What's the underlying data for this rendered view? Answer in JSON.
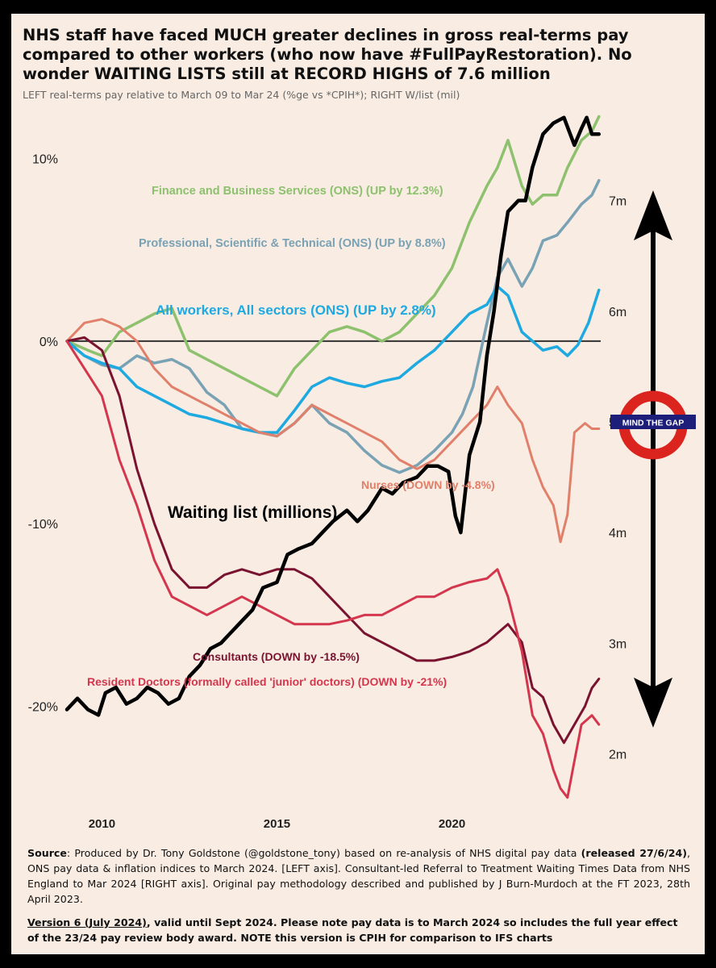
{
  "title": "NHS staff have faced MUCH greater declines in gross real-terms pay compared to other workers (who now have #FullPayRestoration). No wonder WAITING LISTS still at RECORD HIGHS of 7.6 million",
  "subtitle": "LEFT real-terms pay relative to March 09 to Mar 24 (%ge vs *CPIH*); RIGHT W/list (mil)",
  "chart_data": {
    "type": "line",
    "title": "NHS staff have faced MUCH greater declines in gross real-terms pay compared to other workers (who now have #FullPayRestoration). No wonder WAITING LISTS still at RECORD HIGHS of 7.6 million",
    "xlabel": "",
    "ylabel": "",
    "xlim": [
      2009.0,
      2024.25
    ],
    "ylim": [
      -25.5,
      12.5
    ],
    "y2lim": [
      1.85,
      7.5
    ],
    "x_ticks": [
      2010,
      2015,
      2020
    ],
    "x_tick_labels": [
      "2010",
      "2015",
      "2020"
    ],
    "y_ticks": [
      10,
      0,
      -10,
      -20
    ],
    "y_tick_labels": [
      "10%",
      "0%",
      "-10%",
      "-20%"
    ],
    "y2_ticks": [
      7,
      6,
      5,
      4,
      3,
      2
    ],
    "y2_tick_labels": [
      "7m",
      "6m",
      "5m",
      "4m",
      "3m",
      "2m"
    ],
    "colors": {
      "finance": "#8ec16e",
      "professional": "#7aa2b5",
      "all_workers": "#1fa9e1",
      "nurses": "#e1806a",
      "consultants": "#7a1330",
      "resident_doctors": "#d4374d",
      "waiting_list": "#000000",
      "zero_line": "#333333"
    },
    "series": [
      {
        "key": "finance",
        "name": "Finance and Business Services (ONS)",
        "axis": "left",
        "label": "Finance and Business Services (ONS) (UP by 12.3%)",
        "x": [
          2009.0,
          2009.6,
          2010.0,
          2010.5,
          2011.0,
          2011.5,
          2012.0,
          2012.5,
          2013.0,
          2013.5,
          2014.0,
          2014.5,
          2015.0,
          2015.5,
          2016.0,
          2016.5,
          2017.0,
          2017.5,
          2018.0,
          2018.5,
          2019.0,
          2019.5,
          2020.0,
          2020.5,
          2021.0,
          2021.3,
          2021.6,
          2022.0,
          2022.3,
          2022.6,
          2023.0,
          2023.3,
          2023.7,
          2024.0,
          2024.2
        ],
        "values": [
          0,
          -0.5,
          -0.8,
          0.5,
          1.0,
          1.5,
          1.8,
          -0.5,
          -1.0,
          -1.5,
          -2.0,
          -2.5,
          -3.0,
          -1.5,
          -0.5,
          0.5,
          0.8,
          0.5,
          0.0,
          0.5,
          1.5,
          2.5,
          4.0,
          6.5,
          8.5,
          9.5,
          11.0,
          8.5,
          7.5,
          8.0,
          8.0,
          9.5,
          11.0,
          11.5,
          12.3
        ]
      },
      {
        "key": "professional",
        "name": "Professional, Scientific & Technical (ONS)",
        "axis": "left",
        "label": "Professional, Scientific & Technical (ONS) (UP by 8.8%)",
        "x": [
          2009.0,
          2009.5,
          2010.0,
          2010.5,
          2011.0,
          2011.5,
          2012.0,
          2012.5,
          2013.0,
          2013.5,
          2014.0,
          2014.5,
          2015.0,
          2015.5,
          2016.0,
          2016.5,
          2017.0,
          2017.5,
          2018.0,
          2018.5,
          2019.0,
          2019.5,
          2020.0,
          2020.3,
          2020.6,
          2021.0,
          2021.3,
          2021.6,
          2022.0,
          2022.3,
          2022.6,
          2023.0,
          2023.3,
          2023.7,
          2024.0,
          2024.2
        ],
        "values": [
          0,
          -0.8,
          -1.3,
          -1.5,
          -0.8,
          -1.2,
          -1.0,
          -1.5,
          -2.8,
          -3.5,
          -4.8,
          -5.0,
          -5.2,
          -4.5,
          -3.5,
          -4.5,
          -5.0,
          -6.0,
          -6.8,
          -7.2,
          -6.8,
          -6.0,
          -5.0,
          -4.0,
          -2.5,
          1.0,
          3.5,
          4.5,
          3.0,
          4.0,
          5.5,
          5.8,
          6.5,
          7.5,
          8.0,
          8.8
        ]
      },
      {
        "key": "all_workers",
        "name": "All workers, All sectors (ONS)",
        "axis": "left",
        "label": "All workers, All sectors (ONS) (UP by 2.8%)",
        "x": [
          2009.0,
          2009.5,
          2010.0,
          2010.5,
          2011.0,
          2011.5,
          2012.0,
          2012.5,
          2013.0,
          2013.5,
          2014.0,
          2014.5,
          2015.0,
          2015.5,
          2016.0,
          2016.5,
          2017.0,
          2017.5,
          2018.0,
          2018.5,
          2019.0,
          2019.5,
          2020.0,
          2020.5,
          2021.0,
          2021.3,
          2021.6,
          2022.0,
          2022.3,
          2022.6,
          2023.0,
          2023.3,
          2023.6,
          2023.9,
          2024.2
        ],
        "values": [
          0,
          -0.8,
          -1.2,
          -1.5,
          -2.5,
          -3.0,
          -3.5,
          -4.0,
          -4.2,
          -4.5,
          -4.8,
          -5.0,
          -5.0,
          -3.8,
          -2.5,
          -2.0,
          -2.3,
          -2.5,
          -2.2,
          -2.0,
          -1.2,
          -0.5,
          0.5,
          1.5,
          2.0,
          3.0,
          2.5,
          0.5,
          0.0,
          -0.5,
          -0.3,
          -0.8,
          -0.2,
          1.0,
          2.8
        ]
      },
      {
        "key": "nurses",
        "name": "Nurses",
        "axis": "left",
        "label": "Nurses (DOWN by -4.8%)",
        "x": [
          2009.0,
          2009.5,
          2010.0,
          2010.5,
          2011.0,
          2011.5,
          2012.0,
          2012.5,
          2013.0,
          2013.5,
          2014.0,
          2014.5,
          2015.0,
          2015.5,
          2016.0,
          2016.5,
          2017.0,
          2017.5,
          2018.0,
          2018.5,
          2019.0,
          2019.5,
          2020.0,
          2020.5,
          2021.0,
          2021.3,
          2021.6,
          2022.0,
          2022.3,
          2022.6,
          2022.9,
          2023.1,
          2023.3,
          2023.5,
          2023.8,
          2024.0,
          2024.2
        ],
        "values": [
          0,
          1.0,
          1.2,
          0.8,
          0.0,
          -1.5,
          -2.5,
          -3.0,
          -3.5,
          -4.0,
          -4.5,
          -5.0,
          -5.2,
          -4.5,
          -3.5,
          -4.0,
          -4.5,
          -5.0,
          -5.5,
          -6.5,
          -7.0,
          -6.5,
          -5.5,
          -4.5,
          -3.5,
          -2.5,
          -3.5,
          -4.5,
          -6.5,
          -8.0,
          -9.0,
          -11.0,
          -9.5,
          -5.0,
          -4.5,
          -4.8,
          -4.8
        ]
      },
      {
        "key": "consultants",
        "name": "Consultants",
        "axis": "left",
        "label": "Consultants (DOWN by -18.5%)",
        "x": [
          2009.0,
          2009.5,
          2010.0,
          2010.5,
          2011.0,
          2011.5,
          2012.0,
          2012.5,
          2013.0,
          2013.5,
          2014.0,
          2014.5,
          2015.0,
          2015.5,
          2016.0,
          2016.5,
          2017.0,
          2017.5,
          2018.0,
          2018.5,
          2019.0,
          2019.5,
          2020.0,
          2020.5,
          2021.0,
          2021.3,
          2021.6,
          2022.0,
          2022.3,
          2022.6,
          2022.9,
          2023.2,
          2023.5,
          2023.8,
          2024.0,
          2024.2
        ],
        "values": [
          0,
          0.2,
          -0.5,
          -3.0,
          -7.0,
          -10.0,
          -12.5,
          -13.5,
          -13.5,
          -12.8,
          -12.5,
          -12.8,
          -12.5,
          -12.5,
          -13.0,
          -14.0,
          -15.0,
          -16.0,
          -16.5,
          -17.0,
          -17.5,
          -17.5,
          -17.3,
          -17.0,
          -16.5,
          -16.0,
          -15.5,
          -16.5,
          -19.0,
          -19.5,
          -21.0,
          -22.0,
          -21.0,
          -20.0,
          -19.0,
          -18.5
        ]
      },
      {
        "key": "resident_doctors",
        "name": "Resident Doctors (formally called 'junior' doctors)",
        "axis": "left",
        "label": "Resident Doctors (formally called 'junior' doctors) (DOWN by -21%)",
        "x": [
          2009.0,
          2009.5,
          2010.0,
          2010.5,
          2011.0,
          2011.5,
          2012.0,
          2012.5,
          2013.0,
          2013.5,
          2014.0,
          2014.5,
          2015.0,
          2015.5,
          2016.0,
          2016.5,
          2017.0,
          2017.5,
          2018.0,
          2018.5,
          2019.0,
          2019.5,
          2020.0,
          2020.5,
          2021.0,
          2021.3,
          2021.6,
          2022.0,
          2022.3,
          2022.6,
          2022.9,
          2023.1,
          2023.3,
          2023.5,
          2023.7,
          2024.0,
          2024.2
        ],
        "values": [
          0,
          -1.5,
          -3.0,
          -6.5,
          -9.0,
          -12.0,
          -14.0,
          -14.5,
          -15.0,
          -14.5,
          -14.0,
          -14.5,
          -15.0,
          -15.5,
          -15.5,
          -15.5,
          -15.3,
          -15.0,
          -15.0,
          -14.5,
          -14.0,
          -14.0,
          -13.5,
          -13.2,
          -13.0,
          -12.5,
          -14.0,
          -17.0,
          -20.5,
          -21.5,
          -23.5,
          -24.5,
          -25.0,
          -23.0,
          -21.0,
          -20.5,
          -21.0
        ]
      },
      {
        "key": "waiting_list",
        "name": "Waiting list (millions)",
        "axis": "right",
        "label": "Waiting list (millions)",
        "x": [
          2009.0,
          2009.3,
          2009.6,
          2009.9,
          2010.1,
          2010.4,
          2010.7,
          2011.0,
          2011.3,
          2011.6,
          2011.9,
          2012.2,
          2012.5,
          2012.8,
          2013.1,
          2013.4,
          2013.7,
          2014.0,
          2014.3,
          2014.6,
          2015.0,
          2015.3,
          2015.6,
          2016.0,
          2016.3,
          2016.6,
          2017.0,
          2017.3,
          2017.6,
          2018.0,
          2018.3,
          2018.6,
          2019.0,
          2019.3,
          2019.6,
          2019.9,
          2020.1,
          2020.25,
          2020.5,
          2020.8,
          2021.0,
          2021.2,
          2021.4,
          2021.6,
          2021.9,
          2022.1,
          2022.3,
          2022.6,
          2022.9,
          2023.2,
          2023.5,
          2023.7,
          2023.85,
          2024.0,
          2024.2
        ],
        "values": [
          2.4,
          2.5,
          2.4,
          2.35,
          2.55,
          2.6,
          2.45,
          2.5,
          2.6,
          2.55,
          2.45,
          2.5,
          2.7,
          2.8,
          2.95,
          3.0,
          3.1,
          3.2,
          3.3,
          3.5,
          3.55,
          3.8,
          3.85,
          3.9,
          4.0,
          4.1,
          4.2,
          4.1,
          4.2,
          4.4,
          4.35,
          4.45,
          4.5,
          4.6,
          4.6,
          4.55,
          4.15,
          4.0,
          4.7,
          5.0,
          5.6,
          6.0,
          6.5,
          6.9,
          7.0,
          7.0,
          7.3,
          7.6,
          7.7,
          7.75,
          7.5,
          7.65,
          7.75,
          7.6,
          7.6
        ]
      }
    ],
    "annotations": {
      "mind_the_gap": "MIND THE GAP"
    }
  },
  "source": {
    "label": "Source",
    "text_1": ": Produced by Dr. Tony Goldstone (@goldstone_tony) based on re-analysis of NHS digital pay data ",
    "bold_released": "(released 27/6/24)",
    "text_2": ", ONS pay data & inflation indices to March 2024. [LEFT axis]. Consultant-led Referral to Treatment Waiting Times Data from NHS England to Mar 2024 [RIGHT axis]. Original pay methodology described and published by J Burn-Murdoch at the FT 2023, 28th April 2023."
  },
  "version": {
    "underlined": "Version 6 (July 2024)",
    "text": ", valid until Sept 2024. Please note pay data is to March 2024 so includes the full year effect of the 23/24 pay review body award. NOTE this version is CPIH for comparison to IFS charts"
  }
}
